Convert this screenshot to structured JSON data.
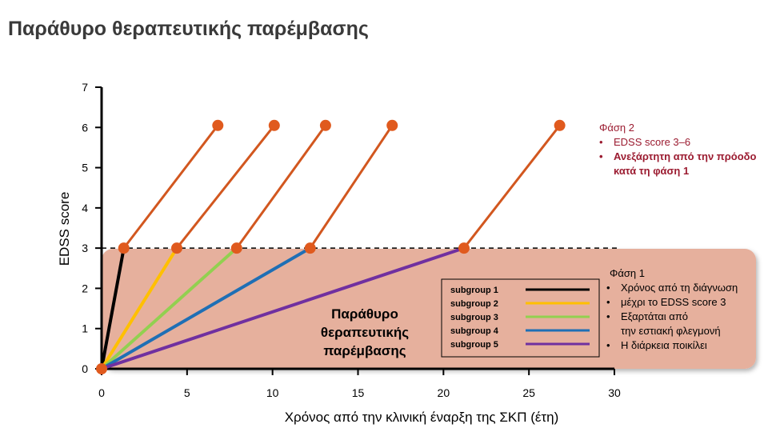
{
  "page": {
    "title": "Παράθυρο θεραπευτικής παρέμβασης"
  },
  "chart_data": {
    "type": "line",
    "xlabel": "Χρόνος από την κλινική έναρξη της ΣΚΠ (έτη)",
    "ylabel": "EDSS score",
    "xlim": [
      0,
      30
    ],
    "ylim": [
      0,
      7
    ],
    "xticks": [
      "0",
      "5",
      "10",
      "15",
      "20",
      "25",
      "30"
    ],
    "yticks": [
      "0",
      "1",
      "2",
      "3",
      "4",
      "5",
      "6",
      "7"
    ],
    "grid": false,
    "threshold": {
      "y": 3,
      "style": "dashed"
    },
    "window_label": [
      "Παράθυρο",
      "θεραπευτικής",
      "παρέμβασης"
    ],
    "phase1_line_colors": [
      "#000000",
      "#ffc000",
      "#92d050",
      "#1f6fb5",
      "#7030a0"
    ],
    "phase2_line_color": "#d2571f",
    "marker_color": "#e05a1e",
    "window_fill": "#e6b09d",
    "series": [
      {
        "name": "subgroup 1",
        "phase1": [
          [
            0,
            0
          ],
          [
            1.3,
            3
          ]
        ],
        "phase2": [
          [
            1.3,
            3
          ],
          [
            6.8,
            6.05
          ]
        ]
      },
      {
        "name": "subgroup 2",
        "phase1": [
          [
            0,
            0
          ],
          [
            4.4,
            3
          ]
        ],
        "phase2": [
          [
            4.4,
            3
          ],
          [
            10.1,
            6.05
          ]
        ]
      },
      {
        "name": "subgroup 3",
        "phase1": [
          [
            0,
            0
          ],
          [
            7.9,
            3
          ]
        ],
        "phase2": [
          [
            7.9,
            3
          ],
          [
            13.1,
            6.05
          ]
        ]
      },
      {
        "name": "subgroup 4",
        "phase1": [
          [
            0,
            0
          ],
          [
            12.2,
            3
          ]
        ],
        "phase2": [
          [
            12.2,
            3
          ],
          [
            17.0,
            6.05
          ]
        ]
      },
      {
        "name": "subgroup 5",
        "phase1": [
          [
            0,
            0
          ],
          [
            21.2,
            3
          ]
        ],
        "phase2": [
          [
            21.2,
            3
          ],
          [
            26.8,
            6.05
          ]
        ]
      }
    ],
    "legend": {
      "position": "inside-bottom-right"
    }
  },
  "annotations": {
    "phase2": {
      "title": "Φάση 2",
      "bullets": [
        "EDSS score 3–6",
        "Ανεξάρτητη από την πρόοδο κατά τη φάση 1"
      ]
    },
    "phase1": {
      "title": "Φάση 1",
      "bullets": [
        "Χρόνος από τη διάγνωση μέχρι το EDSS score 3",
        "Εξαρτάται από την εστιακή φλεγμονή",
        "Η διάρκεια ποικίλει"
      ],
      "bullet_lines": [
        [
          "Χρόνος από τη διάγνωση"
        ],
        [
          "μέχρι το EDSS score 3"
        ],
        [
          "Εξαρτάται από",
          "την εστιακή φλεγμονή"
        ],
        [
          "Η διάρκεια ποικίλει"
        ]
      ]
    }
  }
}
